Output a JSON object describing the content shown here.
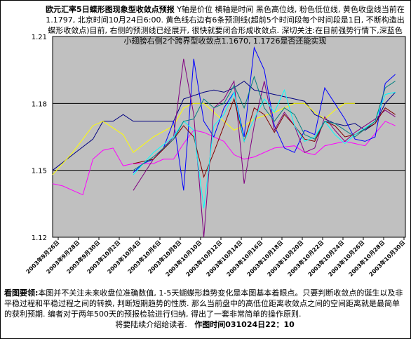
{
  "header": {
    "title": "欧元汇率5日蝶形图现象型收敛点预报",
    "description": "Y轴是价位 横轴是时间 黑色高位线, 粉色低位线, 黄色收盘线当前在1.1797, 北京时间10月24日6:00. 黄色线右边有6条预测线(超前5个时间段每个时间段是1日, 不断构造出蝶形收敛点)目前, 右侧的预测线已经展开, 很快就要闭合形成收敛点.",
    "note": "深切关注:在目前强势行情下,深蓝色小翅膀右侧2个跨界型收敛点1.1670, 1.1726是否还能实现"
  },
  "footer": {
    "label": "看图要领:",
    "body": "本图并不关注未来收盘位准确数值, 1-5天蝴蝶形趋势变化是本图基本着眼点。只要判断收敛点的诞生以及非平稳过程和平稳过程之间的转换, 判断短期趋势的性质. 那么当前盘中的高低位距离收敛点之间的空间距离就是最简单的获利预期. 编者对于两年500天的预报检验进行归纳, 得出了一套非常简单的操作原则.",
    "closing": "将要陆续介绍给读者.",
    "time": "作图时间031024日22：10"
  },
  "chart_data": {
    "type": "line",
    "title": "欧元汇率5日蝶形图现象型收敛点预报",
    "ylim": [
      1.12,
      1.21
    ],
    "yticks": [
      "1.12",
      "1.15",
      "1.18",
      "1.21"
    ],
    "hlines": [
      1.15,
      1.18
    ],
    "categories": [
      "2003年9月26日",
      "2003年9月28日",
      "2003年9月30日",
      "2003年10月2日",
      "2003年10月4日",
      "2003年10月6日",
      "2003年10月8日",
      "2003年10月10日",
      "2003年10月12日",
      "2003年10月14日",
      "2003年10月16日",
      "2003年10月18日",
      "2003年10月20日",
      "2003年10月22日",
      "2003年10月24日",
      "2003年10月26日",
      "2003年10月28日",
      "2003年10月30日"
    ],
    "x_range": [
      0,
      35
    ],
    "plot_background": "#c0c0c0",
    "series": [
      {
        "color": "#000080",
        "points": [
          [
            0,
            1.15
          ],
          [
            2,
            1.157
          ],
          [
            4,
            1.164
          ],
          [
            5,
            1.172
          ],
          [
            6,
            1.172
          ],
          [
            7,
            1.175
          ],
          [
            8,
            1.172
          ],
          [
            10,
            1.172
          ],
          [
            12,
            1.172
          ],
          [
            13,
            1.182
          ],
          [
            15,
            1.185
          ],
          [
            16,
            1.186
          ],
          [
            17,
            1.185
          ],
          [
            18,
            1.187
          ],
          [
            19,
            1.19
          ],
          [
            20,
            1.186
          ],
          [
            22,
            1.184
          ],
          [
            24,
            1.182
          ],
          [
            25,
            1.181
          ],
          [
            26,
            1.175
          ],
          [
            28,
            1.171
          ],
          [
            29,
            1.17
          ],
          [
            30,
            1.171
          ],
          [
            31,
            1.168
          ],
          [
            32,
            1.171
          ],
          [
            33,
            1.18
          ],
          [
            34,
            1.185
          ]
        ]
      },
      {
        "color": "#ff00ff",
        "points": [
          [
            0,
            1.144
          ],
          [
            1,
            1.143
          ],
          [
            2,
            1.141
          ],
          [
            3,
            1.139
          ],
          [
            4,
            1.155
          ],
          [
            5,
            1.159
          ],
          [
            6,
            1.16
          ],
          [
            7,
            1.152
          ],
          [
            8,
            1.153
          ],
          [
            10,
            1.153
          ],
          [
            11,
            1.155
          ],
          [
            12,
            1.155
          ],
          [
            13,
            1.162
          ],
          [
            14,
            1.168
          ],
          [
            15,
            1.167
          ],
          [
            17,
            1.163
          ],
          [
            18,
            1.157
          ],
          [
            19,
            1.155
          ],
          [
            20,
            1.156
          ],
          [
            22,
            1.16
          ],
          [
            24,
            1.161
          ],
          [
            25,
            1.158
          ],
          [
            26,
            1.157
          ],
          [
            27,
            1.161
          ],
          [
            29,
            1.163
          ],
          [
            31,
            1.161
          ],
          [
            33,
            1.172
          ],
          [
            34,
            1.17
          ]
        ]
      },
      {
        "color": "#ffff00",
        "points": [
          [
            0,
            1.148
          ],
          [
            2,
            1.158
          ],
          [
            3,
            1.164
          ],
          [
            4,
            1.17
          ],
          [
            5,
            1.172
          ],
          [
            6,
            1.169
          ],
          [
            7,
            1.166
          ],
          [
            8,
            1.158
          ],
          [
            10,
            1.165
          ],
          [
            12,
            1.17
          ],
          [
            13,
            1.178
          ],
          [
            14,
            1.18
          ],
          [
            15,
            1.18
          ],
          [
            16,
            1.176
          ],
          [
            17,
            1.172
          ],
          [
            18,
            1.168
          ],
          [
            19,
            1.17
          ],
          [
            20,
            1.173
          ],
          [
            22,
            1.176
          ],
          [
            24,
            1.18
          ],
          [
            25,
            1.18
          ],
          [
            26,
            1.176
          ],
          [
            27,
            1.173
          ],
          [
            28,
            1.177
          ],
          [
            29,
            1.18
          ],
          [
            30,
            1.18
          ]
        ]
      },
      {
        "color": "#0000ff",
        "points": [
          [
            8,
            1.149
          ],
          [
            9,
            1.153
          ],
          [
            10,
            1.155
          ],
          [
            11,
            1.16
          ],
          [
            12,
            1.172
          ],
          [
            13,
            1.141
          ],
          [
            14,
            1.2
          ],
          [
            15,
            1.172
          ],
          [
            16,
            1.165
          ],
          [
            17,
            1.178
          ],
          [
            18,
            1.185
          ],
          [
            19,
            1.165
          ],
          [
            20,
            1.205
          ],
          [
            21,
            1.195
          ],
          [
            22,
            1.17
          ],
          [
            23,
            1.16
          ],
          [
            24,
            1.158
          ],
          [
            25,
            1.168
          ],
          [
            26,
            1.166
          ],
          [
            27,
            1.187
          ],
          [
            28,
            1.18
          ],
          [
            29,
            1.173
          ],
          [
            30,
            1.164
          ],
          [
            31,
            1.163
          ],
          [
            32,
            1.165
          ],
          [
            33,
            1.189
          ],
          [
            34,
            1.193
          ]
        ]
      },
      {
        "color": "#800080",
        "points": [
          [
            8,
            1.141
          ],
          [
            10,
            1.155
          ],
          [
            12,
            1.165
          ],
          [
            13,
            1.2
          ],
          [
            14,
            1.175
          ],
          [
            15,
            1.12
          ],
          [
            16,
            1.178
          ],
          [
            17,
            1.182
          ],
          [
            18,
            1.19
          ],
          [
            19,
            1.144
          ],
          [
            20,
            1.17
          ],
          [
            21,
            1.19
          ],
          [
            22,
            1.168
          ],
          [
            23,
            1.176
          ],
          [
            24,
            1.17
          ],
          [
            25,
            1.158
          ],
          [
            26,
            1.16
          ],
          [
            27,
            1.174
          ],
          [
            28,
            1.168
          ],
          [
            29,
            1.163
          ],
          [
            30,
            1.167
          ],
          [
            32,
            1.173
          ],
          [
            33,
            1.177
          ],
          [
            34,
            1.174
          ]
        ]
      },
      {
        "color": "#800000",
        "points": [
          [
            8,
            1.153
          ],
          [
            10,
            1.155
          ],
          [
            12,
            1.164
          ],
          [
            13,
            1.17
          ],
          [
            14,
            1.165
          ],
          [
            15,
            1.147
          ],
          [
            16,
            1.158
          ],
          [
            17,
            1.17
          ],
          [
            18,
            1.182
          ],
          [
            19,
            1.163
          ],
          [
            20,
            1.178
          ],
          [
            21,
            1.175
          ],
          [
            22,
            1.167
          ],
          [
            23,
            1.175
          ],
          [
            24,
            1.17
          ],
          [
            25,
            1.164
          ],
          [
            26,
            1.163
          ],
          [
            27,
            1.172
          ],
          [
            28,
            1.17
          ],
          [
            29,
            1.165
          ],
          [
            30,
            1.166
          ],
          [
            32,
            1.171
          ],
          [
            33,
            1.178
          ],
          [
            34,
            1.175
          ]
        ]
      },
      {
        "color": "#00ffff",
        "points": [
          [
            8,
            1.148
          ],
          [
            10,
            1.158
          ],
          [
            12,
            1.165
          ],
          [
            13,
            1.172
          ],
          [
            14,
            1.168
          ],
          [
            15,
            1.133
          ],
          [
            16,
            1.17
          ],
          [
            17,
            1.175
          ],
          [
            18,
            1.185
          ],
          [
            19,
            1.163
          ],
          [
            20,
            1.173
          ],
          [
            21,
            1.182
          ],
          [
            22,
            1.176
          ],
          [
            23,
            1.186
          ],
          [
            24,
            1.17
          ],
          [
            25,
            1.163
          ],
          [
            26,
            1.165
          ],
          [
            27,
            1.172
          ],
          [
            28,
            1.166
          ],
          [
            29,
            1.162
          ],
          [
            30,
            1.166
          ],
          [
            32,
            1.172
          ],
          [
            33,
            1.184
          ],
          [
            34,
            1.185
          ]
        ]
      },
      {
        "color": "#008080",
        "points": [
          [
            8,
            1.15
          ],
          [
            10,
            1.156
          ],
          [
            12,
            1.164
          ],
          [
            13,
            1.172
          ],
          [
            14,
            1.173
          ],
          [
            15,
            1.182
          ],
          [
            16,
            1.178
          ],
          [
            17,
            1.18
          ],
          [
            18,
            1.188
          ],
          [
            19,
            1.178
          ],
          [
            20,
            1.192
          ],
          [
            21,
            1.178
          ],
          [
            22,
            1.172
          ],
          [
            23,
            1.178
          ],
          [
            24,
            1.175
          ],
          [
            25,
            1.166
          ],
          [
            26,
            1.164
          ],
          [
            27,
            1.172
          ],
          [
            28,
            1.171
          ],
          [
            29,
            1.168
          ],
          [
            30,
            1.165
          ],
          [
            32,
            1.172
          ],
          [
            33,
            1.187
          ],
          [
            34,
            1.19
          ]
        ]
      }
    ]
  }
}
